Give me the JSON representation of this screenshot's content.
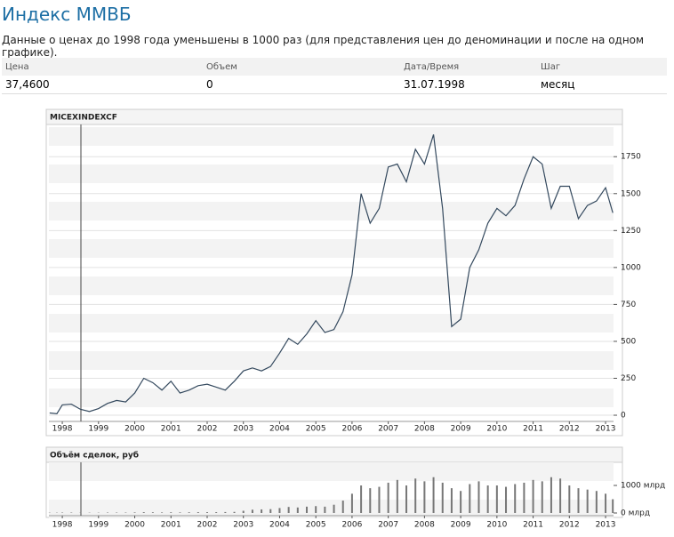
{
  "header": {
    "title": "Индекс ММВБ",
    "subtitle": "Данные о ценах до 1998 года уменьшены в 1000 раз (для представления цен до деноминации и после на одном графике)."
  },
  "table": {
    "columns": [
      "Цена",
      "Объем",
      "Дата/Время",
      "Шаг"
    ],
    "rows": [
      [
        "37,4600",
        "0",
        "31.07.1998",
        "месяц"
      ]
    ]
  },
  "chart_data": [
    {
      "type": "line",
      "title": "MICEXINDEXCF",
      "color": "#34495e",
      "grid": true,
      "x": [
        1997.65,
        1997.85,
        1998,
        1998.25,
        1998.5,
        1998.75,
        1999,
        1999.25,
        1999.5,
        1999.75,
        2000,
        2000.25,
        2000.5,
        2000.75,
        2001,
        2001.25,
        2001.5,
        2001.75,
        2002,
        2002.25,
        2002.5,
        2002.75,
        2003,
        2003.25,
        2003.5,
        2003.75,
        2004,
        2004.25,
        2004.5,
        2004.75,
        2005,
        2005.25,
        2005.5,
        2005.75,
        2006,
        2006.25,
        2006.5,
        2006.75,
        2007,
        2007.25,
        2007.5,
        2007.75,
        2008,
        2008.25,
        2008.5,
        2008.75,
        2009,
        2009.25,
        2009.5,
        2009.75,
        2010,
        2010.25,
        2010.5,
        2010.75,
        2011,
        2011.25,
        2011.5,
        2011.75,
        2012,
        2012.25,
        2012.5,
        2012.75,
        2013,
        2013.2
      ],
      "values": [
        15,
        10,
        70,
        75,
        40,
        25,
        45,
        80,
        100,
        90,
        150,
        250,
        220,
        170,
        230,
        150,
        170,
        200,
        210,
        190,
        170,
        230,
        300,
        320,
        300,
        330,
        420,
        520,
        480,
        550,
        640,
        560,
        580,
        700,
        950,
        1500,
        1300,
        1400,
        1680,
        1700,
        1580,
        1800,
        1700,
        1900,
        1400,
        600,
        650,
        1000,
        1120,
        1300,
        1400,
        1350,
        1420,
        1600,
        1750,
        1700,
        1400,
        1550,
        1550,
        1330,
        1420,
        1450,
        1540,
        1370
      ],
      "xlim": [
        1997.63,
        2013.22
      ],
      "xticks": [
        1998,
        1999,
        2000,
        2001,
        2002,
        2003,
        2004,
        2005,
        2006,
        2007,
        2008,
        2009,
        2010,
        2011,
        2012,
        2013
      ],
      "ylim": [
        -42,
        1950
      ],
      "yticks": [
        0,
        250,
        500,
        750,
        1000,
        1250,
        1500,
        1750
      ]
    },
    {
      "type": "bar",
      "title": "Объём сделок, руб",
      "color": "#777777",
      "x": [
        1997.65,
        1997.85,
        1998,
        1998.25,
        1998.5,
        1998.75,
        1999,
        1999.25,
        1999.5,
        1999.75,
        2000,
        2000.25,
        2000.5,
        2000.75,
        2001,
        2001.25,
        2001.5,
        2001.75,
        2002,
        2002.25,
        2002.5,
        2002.75,
        2003,
        2003.25,
        2003.5,
        2003.75,
        2004,
        2004.25,
        2004.5,
        2004.75,
        2005,
        2005.25,
        2005.5,
        2005.75,
        2006,
        2006.25,
        2006.5,
        2006.75,
        2007,
        2007.25,
        2007.5,
        2007.75,
        2008,
        2008.25,
        2008.5,
        2008.75,
        2009,
        2009.25,
        2009.5,
        2009.75,
        2010,
        2010.25,
        2010.5,
        2010.75,
        2011,
        2011.25,
        2011.5,
        2011.75,
        2012,
        2012.25,
        2012.5,
        2012.75,
        2013,
        2013.2
      ],
      "values": [
        10,
        10,
        15,
        15,
        10,
        10,
        10,
        15,
        15,
        15,
        20,
        30,
        25,
        20,
        25,
        20,
        25,
        30,
        30,
        30,
        35,
        40,
        80,
        120,
        130,
        140,
        180,
        220,
        200,
        230,
        250,
        230,
        300,
        450,
        700,
        1000,
        900,
        950,
        1100,
        1200,
        1000,
        1250,
        1150,
        1300,
        1100,
        900,
        800,
        1050,
        1150,
        1000,
        1000,
        950,
        1050,
        1100,
        1200,
        1150,
        1300,
        1250,
        1000,
        900,
        850,
        800,
        700,
        500
      ],
      "xlim": [
        1997.63,
        2013.22
      ],
      "xticks": [
        1998,
        1999,
        2000,
        2001,
        2002,
        2003,
        2004,
        2005,
        2006,
        2007,
        2008,
        2009,
        2010,
        2011,
        2012,
        2013
      ],
      "ylim": [
        -97,
        1840
      ],
      "yticks": [
        {
          "value": 0,
          "label": "0 млрд"
        },
        {
          "value": 1000,
          "label": "1000 млрд"
        }
      ]
    }
  ]
}
